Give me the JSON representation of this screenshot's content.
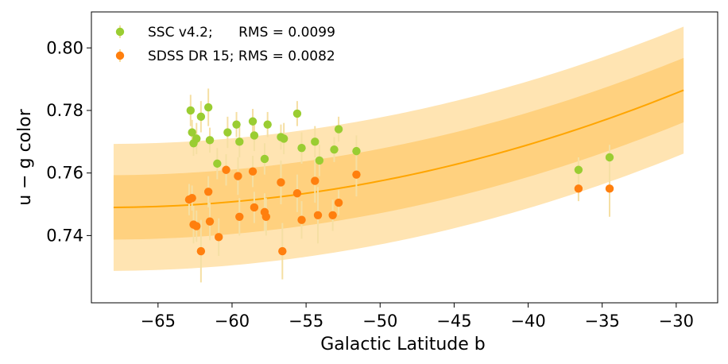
{
  "chart_data": {
    "type": "scatter",
    "xlabel": "Galactic Latitude b",
    "ylabel": "u − g color",
    "xlim": [
      -69.5,
      -27.2
    ],
    "ylim": [
      0.7185,
      0.8115
    ],
    "xticks": [
      -65,
      -60,
      -55,
      -50,
      -45,
      -40,
      -35,
      -30
    ],
    "xtick_labels": [
      "−65",
      "−60",
      "−55",
      "−50",
      "−45",
      "−40",
      "−35",
      "−30"
    ],
    "yticks": [
      0.74,
      0.76,
      0.78,
      0.8
    ],
    "ytick_labels": [
      "0.74",
      "0.76",
      "0.78",
      "0.80"
    ],
    "grid": false,
    "legend_position": "top-left",
    "colors": {
      "ssc": "#9acd32",
      "sdss": "#ff7f0e",
      "fit": "#ffa500",
      "band_inner": "#ffd17f",
      "band_outer": "#ffe4b2",
      "errorbar": "#f5dfa3"
    },
    "fit": {
      "x_range": [
        -68,
        -29.5
      ],
      "model": "quadratic",
      "center": {
        "x": [
          -68,
          -29.5
        ],
        "points": [
          [
            -68,
            0.749
          ],
          [
            -55,
            0.7535
          ],
          [
            -29.5,
            0.7865
          ]
        ]
      },
      "inner_halfwidth": [
        0.0103,
        0.0103
      ],
      "outer_halfwidth": [
        0.0203,
        0.0203
      ]
    },
    "series": [
      {
        "name": "SSC v4.2;      RMS = 0.0099",
        "color": "#9acd32",
        "points": [
          [
            -62.8,
            0.78,
            0.005
          ],
          [
            -62.7,
            0.773,
            0.004
          ],
          [
            -62.6,
            0.7695,
            0.004
          ],
          [
            -62.4,
            0.771,
            0.005
          ],
          [
            -62.1,
            0.778,
            0.005
          ],
          [
            -61.6,
            0.781,
            0.006
          ],
          [
            -61.5,
            0.7705,
            0.004
          ],
          [
            -61.0,
            0.763,
            0.005
          ],
          [
            -60.3,
            0.773,
            0.005
          ],
          [
            -59.7,
            0.7755,
            0.004
          ],
          [
            -59.5,
            0.77,
            0.005
          ],
          [
            -58.6,
            0.7765,
            0.004
          ],
          [
            -58.5,
            0.772,
            0.005
          ],
          [
            -57.6,
            0.7755,
            0.004
          ],
          [
            -57.8,
            0.7645,
            0.005
          ],
          [
            -56.7,
            0.7715,
            0.004
          ],
          [
            -56.5,
            0.771,
            0.005
          ],
          [
            -55.6,
            0.779,
            0.004
          ],
          [
            -55.3,
            0.768,
            0.005
          ],
          [
            -54.4,
            0.77,
            0.005
          ],
          [
            -54.1,
            0.764,
            0.005
          ],
          [
            -53.1,
            0.7675,
            0.004
          ],
          [
            -52.8,
            0.774,
            0.004
          ],
          [
            -51.6,
            0.767,
            0.005
          ],
          [
            -36.6,
            0.761,
            0.004
          ],
          [
            -34.5,
            0.765,
            0.004
          ]
        ]
      },
      {
        "name": "SDSS DR 15; RMS = 0.0082",
        "color": "#ff7f0e",
        "points": [
          [
            -62.9,
            0.7515,
            0.005
          ],
          [
            -62.7,
            0.752,
            0.004
          ],
          [
            -62.6,
            0.7435,
            0.006
          ],
          [
            -62.4,
            0.743,
            0.005
          ],
          [
            -62.1,
            0.735,
            0.01
          ],
          [
            -61.6,
            0.754,
            0.005
          ],
          [
            -61.5,
            0.7445,
            0.006
          ],
          [
            -60.9,
            0.7395,
            0.006
          ],
          [
            -60.4,
            0.761,
            0.005
          ],
          [
            -59.6,
            0.759,
            0.006
          ],
          [
            -59.5,
            0.746,
            0.006
          ],
          [
            -58.6,
            0.7605,
            0.005
          ],
          [
            -58.5,
            0.749,
            0.005
          ],
          [
            -57.8,
            0.7475,
            0.006
          ],
          [
            -57.7,
            0.746,
            0.006
          ],
          [
            -56.7,
            0.757,
            0.007
          ],
          [
            -56.6,
            0.735,
            0.009
          ],
          [
            -55.6,
            0.7535,
            0.006
          ],
          [
            -55.3,
            0.745,
            0.006
          ],
          [
            -54.4,
            0.7575,
            0.007
          ],
          [
            -54.2,
            0.7465,
            0.009
          ],
          [
            -53.2,
            0.7465,
            0.005
          ],
          [
            -52.8,
            0.7505,
            0.004
          ],
          [
            -51.6,
            0.7595,
            0.007
          ],
          [
            -36.6,
            0.755,
            0.004
          ],
          [
            -34.5,
            0.755,
            0.009
          ]
        ]
      }
    ]
  }
}
